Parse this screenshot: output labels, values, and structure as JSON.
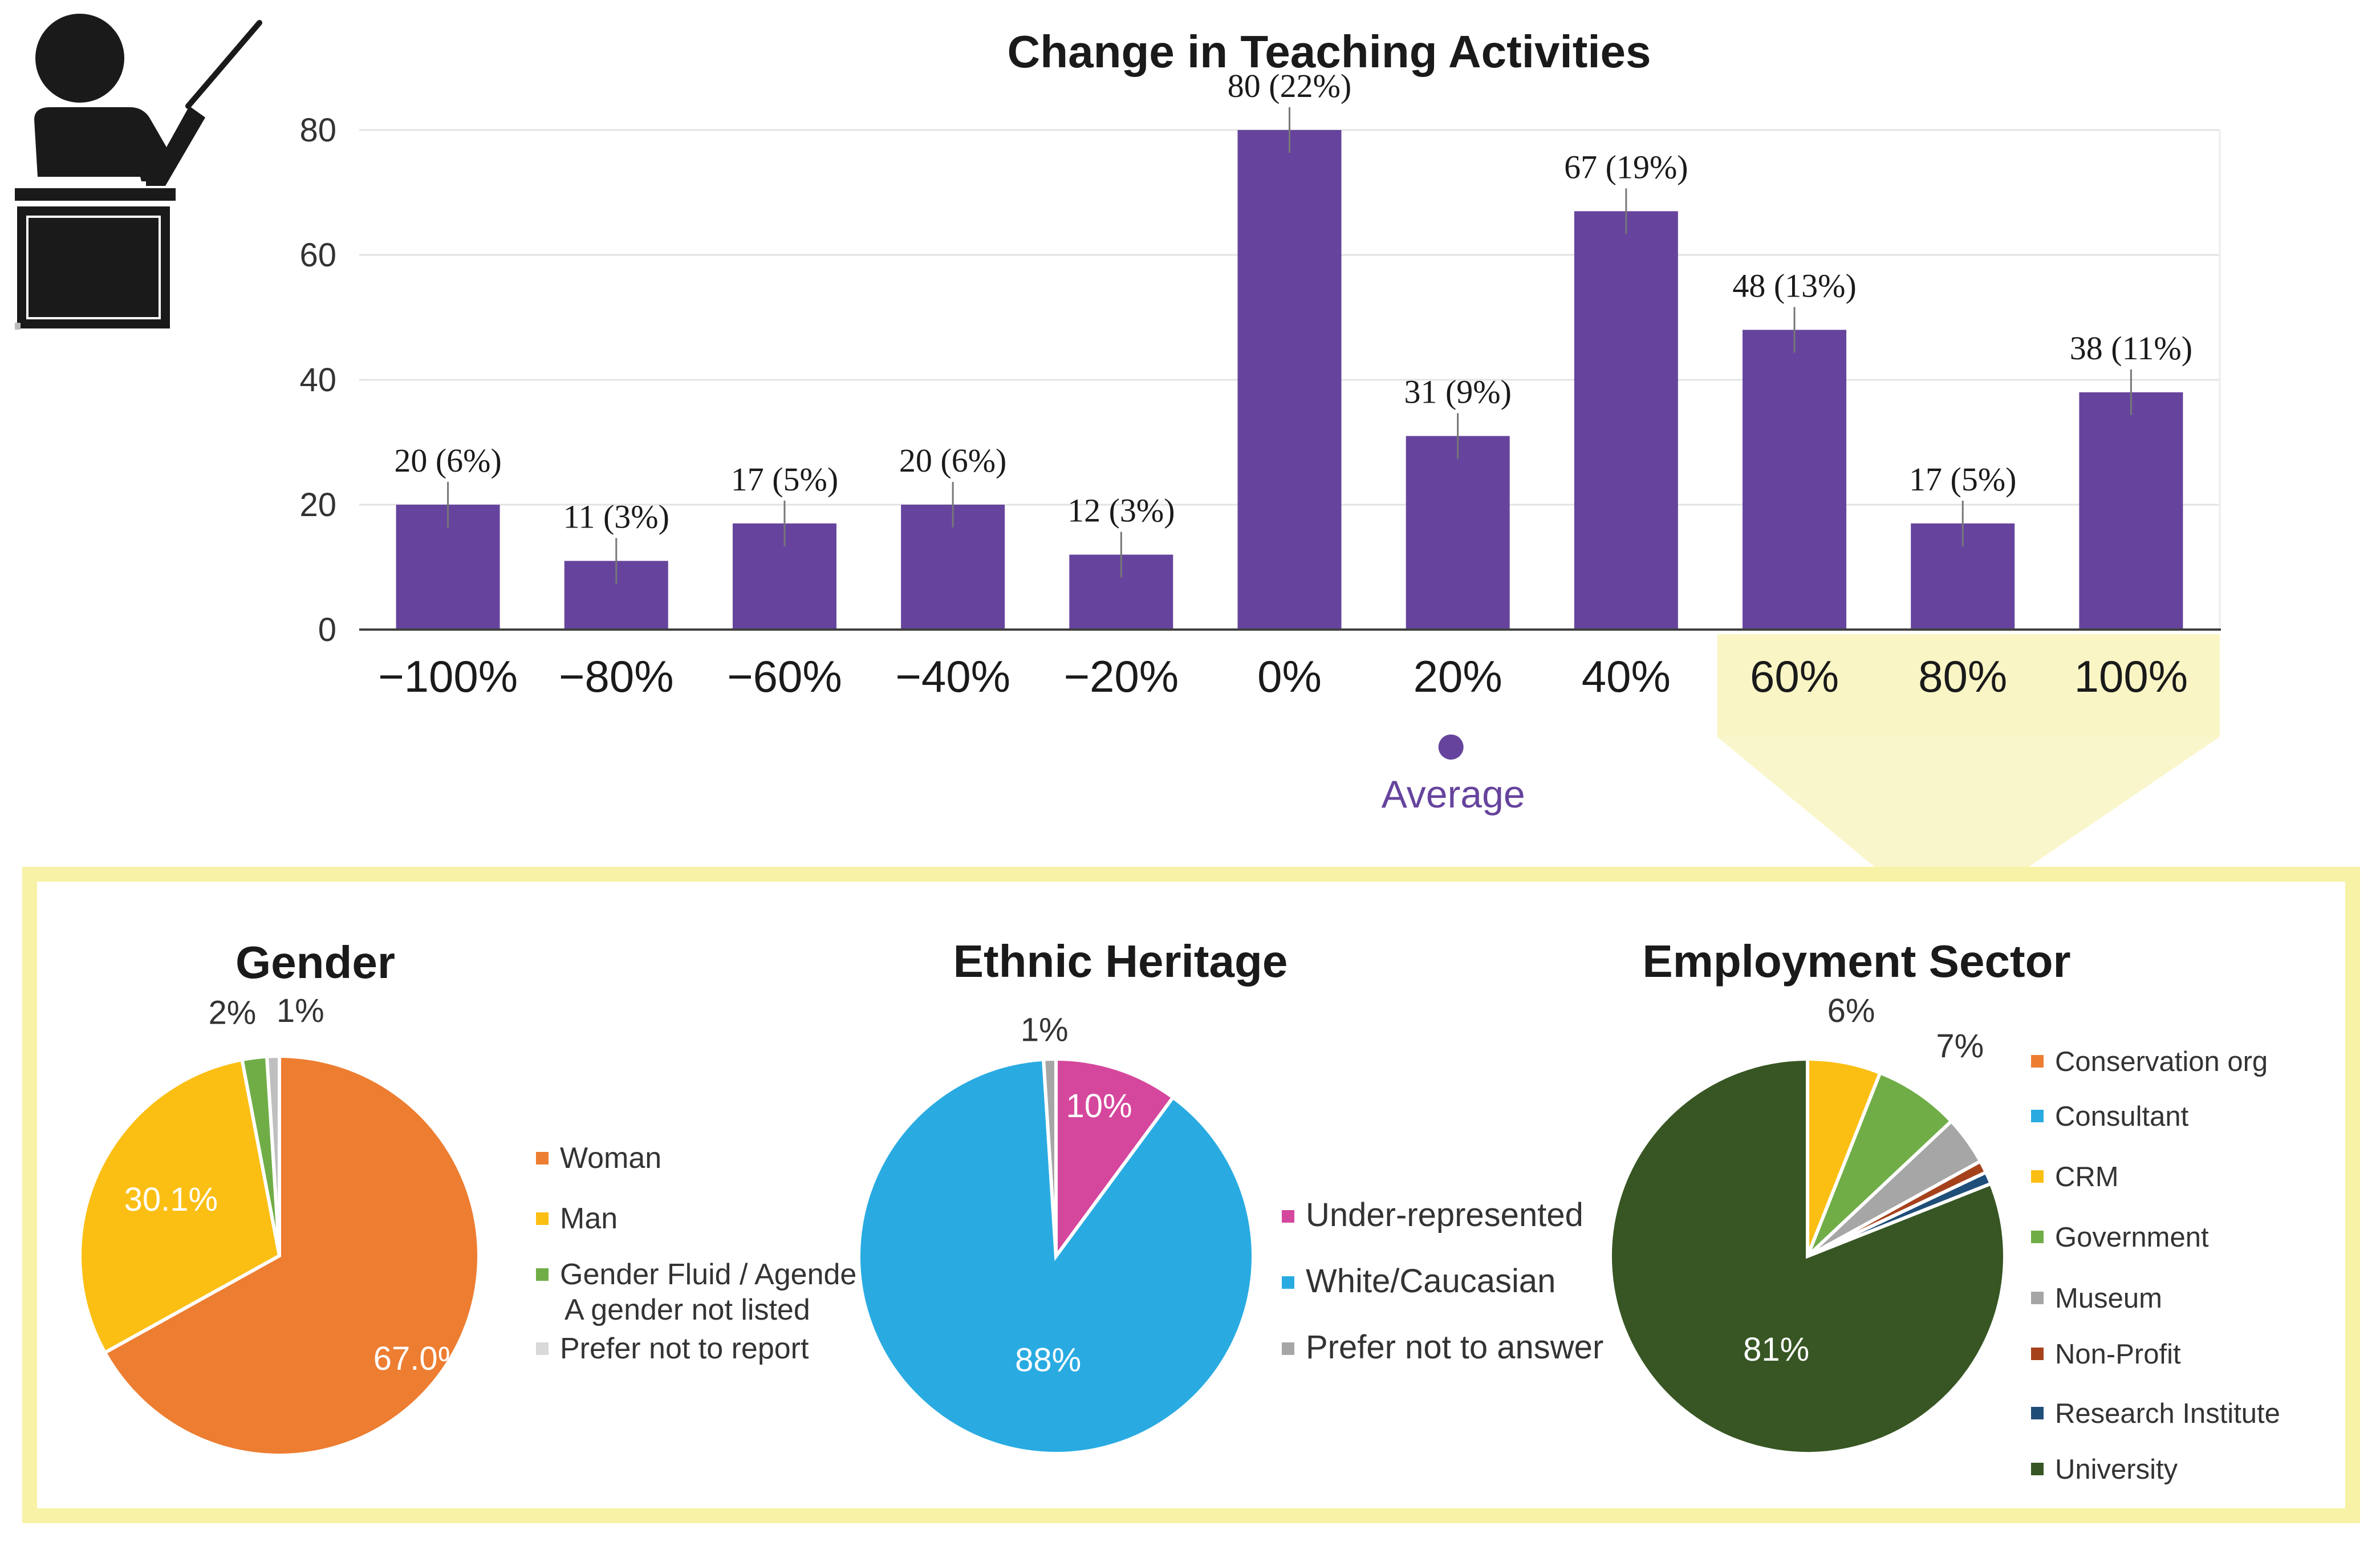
{
  "colors": {
    "bar": "#66449D",
    "highlight": "#FAF5C5",
    "panel_border": "#F7F2A6",
    "average_dot": "#66449D",
    "average_text": "#66449D",
    "icon": "#1A1A1A",
    "axis_text": "#333333"
  },
  "icon": {
    "name": "teacher-pointer-icon"
  },
  "chart_data": [
    {
      "type": "bar",
      "title": "Change in Teaching Activities",
      "categories": [
        "−100%",
        "−80%",
        "−60%",
        "−40%",
        "−20%",
        "0%",
        "20%",
        "40%",
        "60%",
        "80%",
        "100%"
      ],
      "values": [
        20,
        11,
        17,
        20,
        12,
        80,
        31,
        67,
        48,
        17,
        38
      ],
      "data_labels": [
        "20 (6%)",
        "11 (3%)",
        "17 (5%)",
        "20 (6%)",
        "12 (3%)",
        "80 (22%)",
        "31 (9%)",
        "67 (19%)",
        "48 (13%)",
        "17 (5%)",
        "38 (11%)"
      ],
      "yticks": [
        0,
        20,
        40,
        60,
        80
      ],
      "ylim": [
        0,
        80
      ],
      "highlighted_categories": [
        "60%",
        "80%",
        "100%"
      ],
      "average_marker": {
        "category_position": 6,
        "label": "Average"
      },
      "grid": true
    },
    {
      "type": "pie",
      "title": "Gender",
      "slices": [
        {
          "name": "Woman",
          "value": 67.0,
          "label": "67.0%",
          "color": "#ED7D31"
        },
        {
          "name": "Man",
          "value": 30.1,
          "label": "30.1%",
          "color": "#FBBF14"
        },
        {
          "name": "Gender Fluid / Agender / A gender not listed",
          "value": 2,
          "label": "2%",
          "color": "#70AD47"
        },
        {
          "name": "Prefer not to report",
          "value": 1,
          "label": "1%",
          "color": "#BFBFBF"
        }
      ],
      "legend": [
        {
          "lines": [
            "Woman"
          ],
          "color": "#ED7D31"
        },
        {
          "lines": [
            "Man"
          ],
          "color": "#FBBF14"
        },
        {
          "lines": [
            "Gender Fluid / Agender / A",
            "A gender not listed"
          ],
          "color": "#70AD47"
        },
        {
          "lines": [
            "Prefer not to report"
          ],
          "color": "#D9D9D9"
        }
      ]
    },
    {
      "type": "pie",
      "title": "Ethnic Heritage",
      "slices": [
        {
          "name": "Under-represented",
          "value": 10,
          "label": "10%",
          "color": "#D5479D"
        },
        {
          "name": "White/Caucasian",
          "value": 88,
          "label": "88%",
          "color": "#29ABE2"
        },
        {
          "name": "Prefer not to answer",
          "value": 1,
          "label": "1%",
          "color": "#A6A6A6"
        }
      ],
      "legend": [
        {
          "lines": [
            "Under-represented"
          ],
          "color": "#D5479D"
        },
        {
          "lines": [
            "White/Caucasian"
          ],
          "color": "#29ABE2"
        },
        {
          "lines": [
            "Prefer not to answer"
          ],
          "color": "#A6A6A6"
        }
      ]
    },
    {
      "type": "pie",
      "title": "Employment Sector",
      "slices": [
        {
          "name": "CRM",
          "value": 6,
          "label": "6%",
          "color": "#FBBF14"
        },
        {
          "name": "Government",
          "value": 7,
          "label": "7%",
          "color": "#70AD47"
        },
        {
          "name": "Museum",
          "value": 4,
          "label": "",
          "color": "#A6A6A6"
        },
        {
          "name": "Non-Profit",
          "value": 1,
          "label": "",
          "color": "#A5421B"
        },
        {
          "name": "Research Institute",
          "value": 1,
          "label": "",
          "color": "#1F4E79"
        },
        {
          "name": "University",
          "value": 81,
          "label": "81%",
          "color": "#375623"
        }
      ],
      "legend": [
        {
          "lines": [
            "Conservation org"
          ],
          "color": "#ED7D31"
        },
        {
          "lines": [
            "Consultant"
          ],
          "color": "#29ABE2"
        },
        {
          "lines": [
            "CRM"
          ],
          "color": "#FBBF14"
        },
        {
          "lines": [
            "Government"
          ],
          "color": "#70AD47"
        },
        {
          "lines": [
            "Museum"
          ],
          "color": "#A6A6A6"
        },
        {
          "lines": [
            "Non-Profit"
          ],
          "color": "#A5421B"
        },
        {
          "lines": [
            "Research Institute"
          ],
          "color": "#1F4E79"
        },
        {
          "lines": [
            "University"
          ],
          "color": "#375623"
        }
      ]
    }
  ]
}
